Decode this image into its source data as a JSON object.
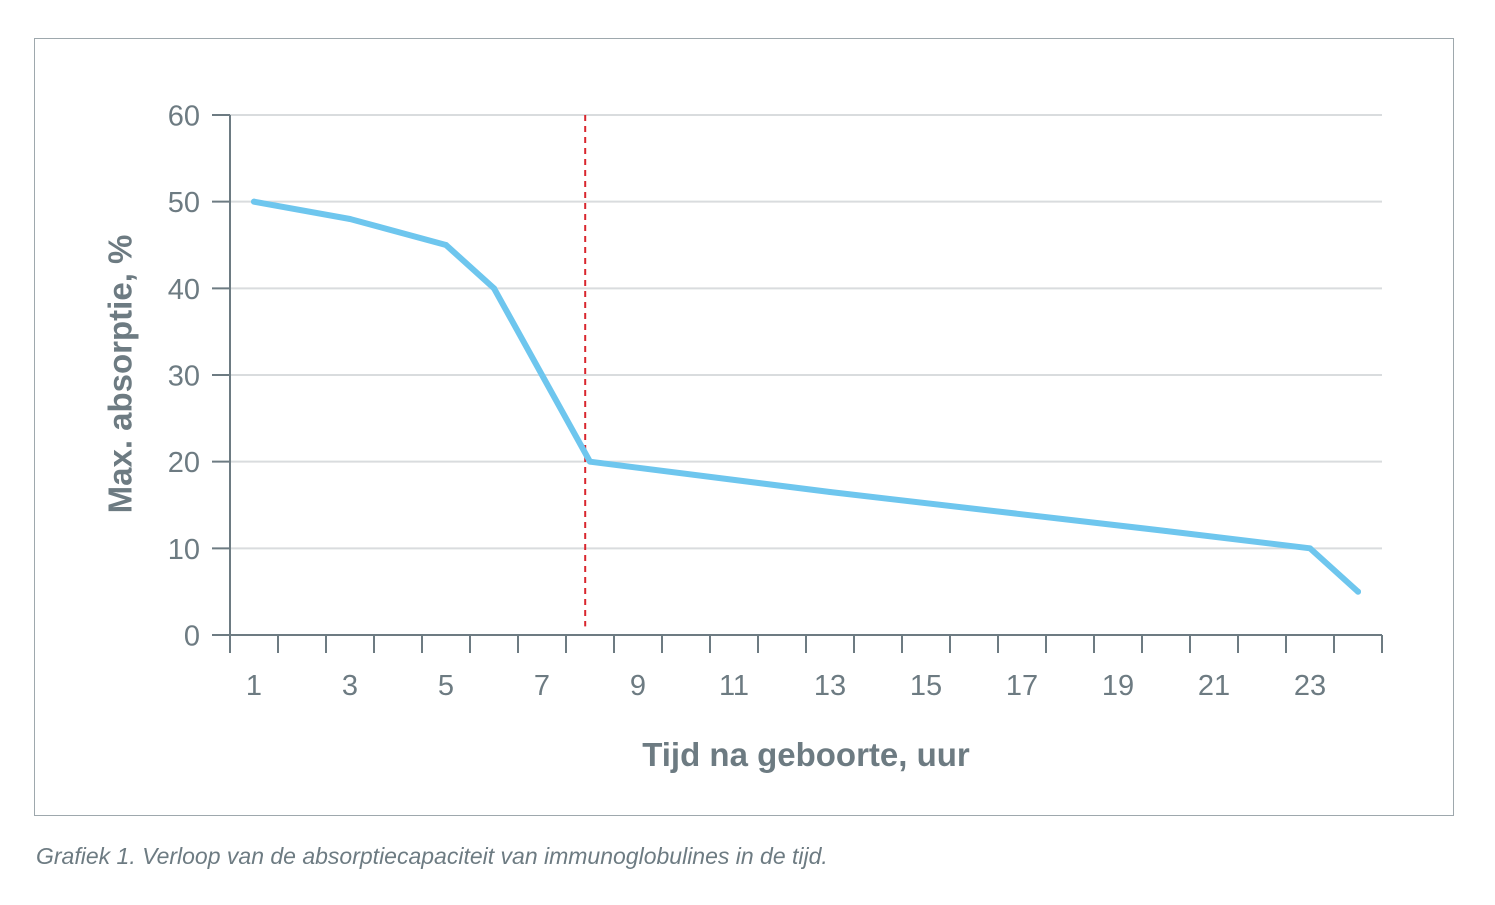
{
  "caption": "Grafiek 1. Verloop van de absorptiecapaciteit van immunoglobulines in de tijd.",
  "chart_data": {
    "type": "line",
    "title": "",
    "xlabel": "Tijd na geboorte, uur",
    "ylabel": "Max. absorptie, %",
    "xlim": [
      0.5,
      24.5
    ],
    "ylim": [
      0,
      60
    ],
    "y_ticks": [
      0,
      10,
      20,
      30,
      40,
      50,
      60
    ],
    "x_tick_labels": [
      "1",
      "3",
      "5",
      "7",
      "9",
      "11",
      "13",
      "15",
      "17",
      "19",
      "21",
      "23"
    ],
    "x_minor_ticks": [
      1.5,
      2.5,
      3.5,
      4.5,
      5.5,
      6.5,
      7.5,
      8.5,
      9.5,
      10.5,
      11.5,
      12.5,
      13.5,
      14.5,
      15.5,
      16.5,
      17.5,
      18.5,
      19.5,
      20.5,
      21.5,
      22.5,
      23.5
    ],
    "grid": true,
    "series": [
      {
        "color": "#6ec6ee",
        "x": [
          1,
          3,
          5,
          6,
          8,
          13,
          20,
          23,
          24
        ],
        "y": [
          50,
          48,
          45,
          40,
          20,
          16.5,
          12,
          10,
          5
        ]
      }
    ],
    "reference_line": {
      "axis": "x",
      "x": 7.9,
      "y_range": [
        1,
        60
      ],
      "color": "#d9262e",
      "style": "dashed"
    },
    "colors": {
      "axis": "#6d7b82",
      "grid": "#d9dcde"
    }
  }
}
